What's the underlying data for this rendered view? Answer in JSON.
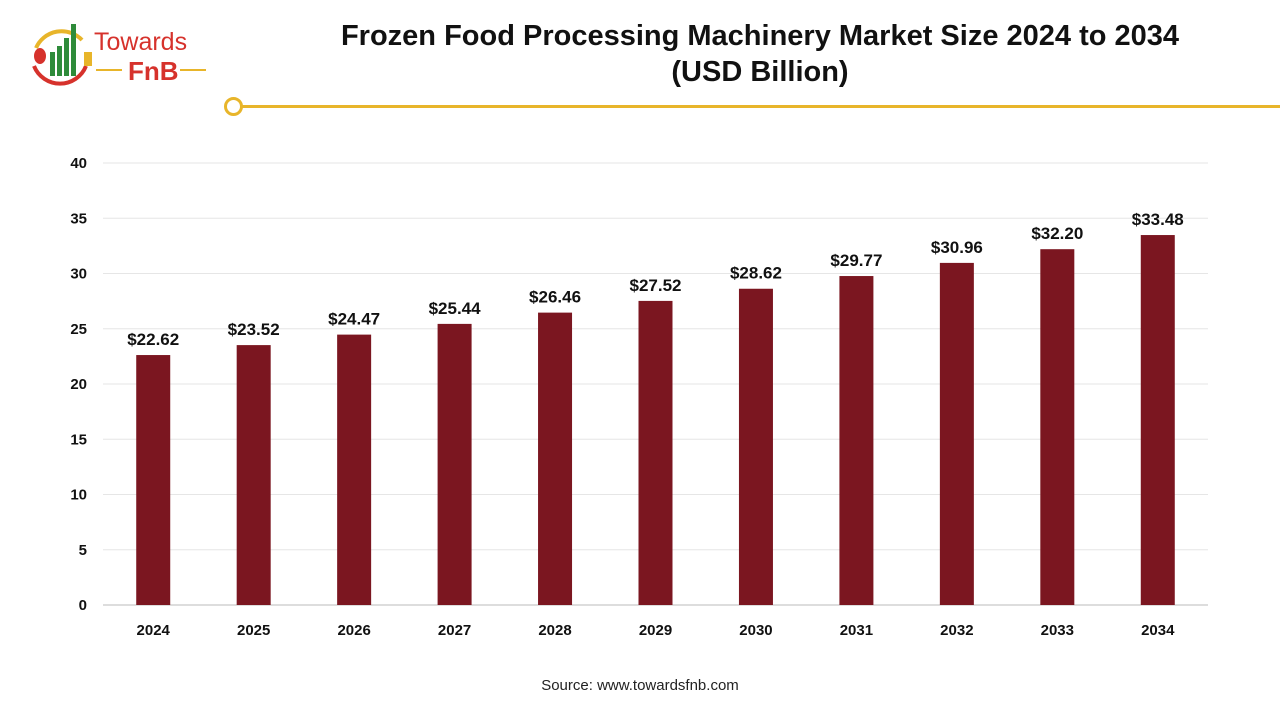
{
  "logo": {
    "text_top": "Towards",
    "text_bottom": "FnB"
  },
  "source": "Source: www.towardsfnb.com",
  "colors": {
    "bar": "#7b1620",
    "accent": "#e8b52a",
    "grid": "#e6e6e6"
  },
  "chart_data": {
    "type": "bar",
    "title": "Frozen Food Processing Machinery Market Size 2024 to 2034",
    "subtitle": "(USD Billion)",
    "categories": [
      "2024",
      "2025",
      "2026",
      "2027",
      "2028",
      "2029",
      "2030",
      "2031",
      "2032",
      "2033",
      "2034"
    ],
    "values": [
      22.62,
      23.52,
      24.47,
      25.44,
      26.46,
      27.52,
      28.62,
      29.77,
      30.96,
      32.2,
      33.48
    ],
    "data_labels": [
      "$22.62",
      "$23.52",
      "$24.47",
      "$25.44",
      "$26.46",
      "$27.52",
      "$28.62",
      "$29.77",
      "$30.96",
      "$32.20",
      "$33.48"
    ],
    "yticks": [
      0,
      5,
      10,
      15,
      20,
      25,
      30,
      35,
      40
    ],
    "ylim": [
      0,
      40
    ],
    "grid": true,
    "legend": "none"
  }
}
